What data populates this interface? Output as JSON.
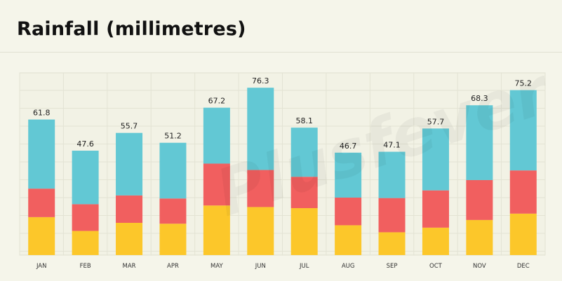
{
  "title": "Rainfall (millimetres)",
  "chart_data": {
    "type": "bar",
    "stacked": true,
    "categories": [
      "JAN",
      "FEB",
      "MAR",
      "APR",
      "MAY",
      "JUN",
      "JUL",
      "AUG",
      "SEP",
      "OCT",
      "NOV",
      "DEC"
    ],
    "totals": [
      61.8,
      47.6,
      55.7,
      51.2,
      67.2,
      76.3,
      58.1,
      46.7,
      47.1,
      57.7,
      68.3,
      75.2
    ],
    "series": [
      {
        "color": "#fcc72a",
        "values": [
          17.3,
          11.0,
          14.7,
          14.3,
          22.6,
          21.9,
          21.4,
          13.6,
          10.4,
          12.5,
          16.0,
          18.9
        ]
      },
      {
        "color": "#f15f5f",
        "values": [
          13.0,
          12.2,
          12.5,
          11.5,
          19.1,
          16.9,
          14.3,
          12.6,
          15.6,
          17.0,
          18.2,
          19.7
        ]
      },
      {
        "color": "#62c8d4",
        "values": [
          31.5,
          24.4,
          28.5,
          25.4,
          25.5,
          37.5,
          22.4,
          20.5,
          21.1,
          28.2,
          34.1,
          36.6
        ]
      }
    ],
    "ylim": [
      0,
      80
    ],
    "grid": true,
    "legend": "none"
  },
  "watermark": "Plusfever"
}
